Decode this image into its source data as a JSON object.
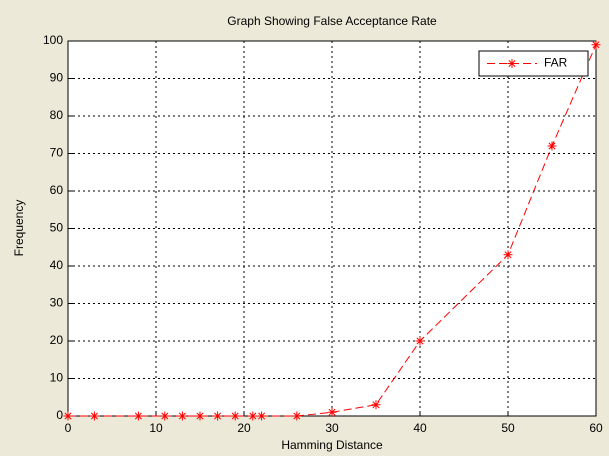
{
  "chart_data": {
    "type": "line",
    "title": "Graph Showing False Acceptance Rate",
    "x_label": "Hamming Distance",
    "y_label": "Frequency",
    "x": [
      0,
      3,
      8,
      11,
      13,
      15,
      17,
      19,
      21,
      22,
      26,
      30,
      35,
      40,
      50,
      55,
      60
    ],
    "series": [
      {
        "name": "FAR",
        "color": "#ff0000",
        "values": [
          0,
          0,
          0,
          0,
          0,
          0,
          0,
          0,
          0,
          0,
          0,
          1,
          3,
          20,
          43,
          72,
          99
        ]
      }
    ],
    "xlim": [
      0,
      60
    ],
    "xticks": [
      0,
      10,
      20,
      30,
      40,
      50,
      60
    ],
    "ylim": [
      0,
      100
    ],
    "yticks": [
      0,
      10,
      20,
      30,
      40,
      50,
      60,
      70,
      80,
      90,
      100
    ],
    "grid": true,
    "legend": "northeast"
  }
}
